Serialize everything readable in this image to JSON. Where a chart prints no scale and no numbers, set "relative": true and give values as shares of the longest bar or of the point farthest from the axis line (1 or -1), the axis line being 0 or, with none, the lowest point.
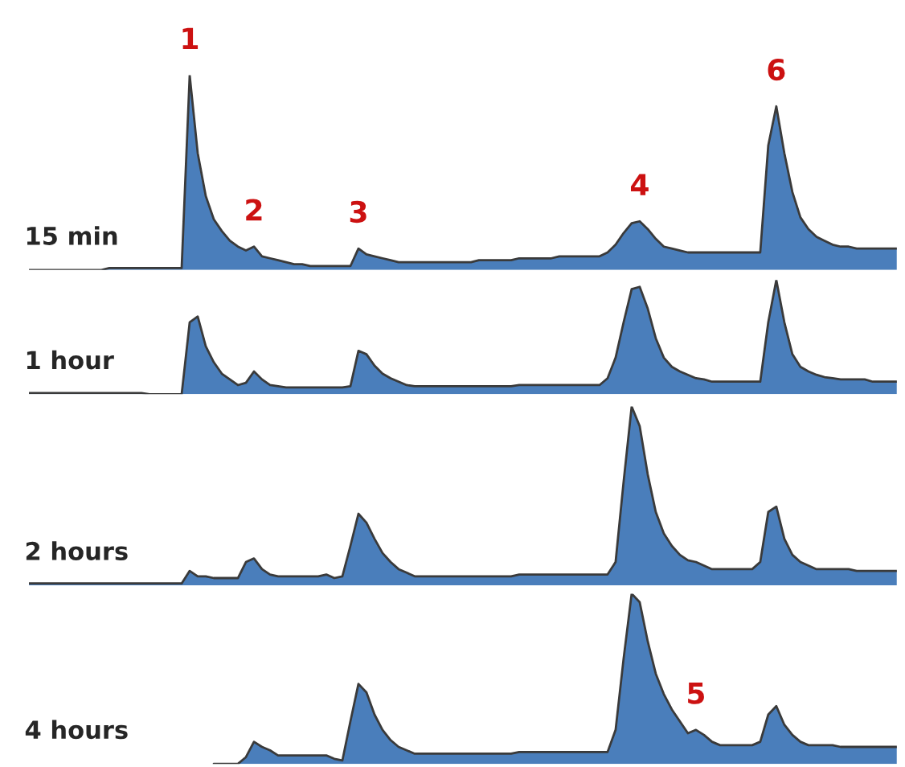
{
  "chart_data": [
    {
      "type": "area",
      "relative": true,
      "categories": [
        null,
        null,
        null,
        null,
        null,
        null,
        null,
        null,
        null,
        null,
        null,
        null,
        null,
        null,
        null,
        null,
        null,
        null,
        null,
        null,
        null,
        null,
        null,
        null,
        null,
        null,
        null,
        null,
        null,
        null,
        null,
        null,
        null,
        null,
        null,
        null,
        null,
        null,
        null,
        null,
        null,
        null,
        null,
        null,
        null,
        null,
        null,
        null,
        null,
        null,
        null,
        null,
        null,
        null,
        null,
        null,
        null,
        null,
        null,
        null,
        null,
        null,
        null,
        null,
        null,
        null,
        null,
        null,
        null,
        null,
        null,
        null,
        null,
        null,
        null,
        null,
        null,
        null,
        null,
        null,
        null,
        null,
        null,
        null,
        null,
        null,
        null,
        null,
        null,
        null,
        null,
        null,
        null,
        null,
        null,
        null,
        null,
        null,
        null,
        null,
        null,
        null,
        null,
        null,
        null,
        null,
        null,
        null,
        null
      ],
      "series": [
        {
          "name": "15 min",
          "color": "#4a7ebb",
          "values": [
            0.0,
            0.0,
            0.0,
            0.0,
            0.0,
            0.0,
            0.0,
            0.0,
            0.0,
            0.0,
            0.01,
            0.01,
            0.01,
            0.01,
            0.01,
            0.01,
            0.01,
            0.01,
            0.01,
            0.01,
            1.0,
            0.6,
            0.38,
            0.26,
            0.2,
            0.15,
            0.12,
            0.1,
            0.12,
            0.07,
            0.06,
            0.05,
            0.04,
            0.03,
            0.03,
            0.02,
            0.02,
            0.02,
            0.02,
            0.02,
            0.02,
            0.11,
            0.08,
            0.07,
            0.06,
            0.05,
            0.04,
            0.04,
            0.04,
            0.04,
            0.04,
            0.04,
            0.04,
            0.04,
            0.04,
            0.04,
            0.05,
            0.05,
            0.05,
            0.05,
            0.05,
            0.06,
            0.06,
            0.06,
            0.06,
            0.06,
            0.07,
            0.07,
            0.07,
            0.07,
            0.07,
            0.07,
            0.09,
            0.13,
            0.19,
            0.24,
            0.25,
            0.21,
            0.16,
            0.12,
            0.11,
            0.1,
            0.09,
            0.09,
            0.09,
            0.09,
            0.09,
            0.09,
            0.09,
            0.09,
            0.09,
            0.09,
            0.64,
            0.84,
            0.6,
            0.4,
            0.27,
            0.21,
            0.17,
            0.15,
            0.13,
            0.12,
            0.12,
            0.11,
            0.11,
            0.11,
            0.11,
            0.11,
            0.11
          ]
        }
      ],
      "annotations": [
        {
          "text": "1",
          "y": 1.0
        },
        {
          "text": "2",
          "y": 0.12
        },
        {
          "text": "3",
          "y": 0.11
        },
        {
          "text": "4",
          "y": 0.25
        },
        {
          "text": "6",
          "y": 0.84
        }
      ]
    },
    {
      "type": "area",
      "relative": true,
      "categories": [
        null,
        null,
        null,
        null,
        null,
        null,
        null,
        null,
        null,
        null,
        null,
        null,
        null,
        null,
        null,
        null,
        null,
        null,
        null,
        null,
        null,
        null,
        null,
        null,
        null,
        null,
        null,
        null,
        null,
        null,
        null,
        null,
        null,
        null,
        null,
        null,
        null,
        null,
        null,
        null,
        null,
        null,
        null,
        null,
        null,
        null,
        null,
        null,
        null,
        null,
        null,
        null,
        null,
        null,
        null,
        null,
        null,
        null,
        null,
        null,
        null,
        null,
        null,
        null,
        null,
        null,
        null,
        null,
        null,
        null,
        null,
        null,
        null,
        null,
        null,
        null,
        null,
        null,
        null,
        null,
        null,
        null,
        null,
        null,
        null,
        null,
        null,
        null,
        null,
        null,
        null,
        null,
        null,
        null,
        null,
        null,
        null,
        null,
        null,
        null,
        null,
        null,
        null,
        null,
        null,
        null,
        null,
        null,
        null
      ],
      "series": [
        {
          "name": "1 hour",
          "color": "#4a7ebb",
          "values": [
            0.01,
            0.01,
            0.01,
            0.01,
            0.01,
            0.01,
            0.01,
            0.01,
            0.01,
            0.01,
            0.01,
            0.01,
            0.01,
            0.01,
            0.01,
            0.0,
            0.0,
            0.0,
            0.0,
            0.0,
            0.63,
            0.68,
            0.42,
            0.28,
            0.18,
            0.13,
            0.08,
            0.1,
            0.2,
            0.13,
            0.08,
            0.07,
            0.06,
            0.06,
            0.06,
            0.06,
            0.06,
            0.06,
            0.06,
            0.06,
            0.07,
            0.38,
            0.35,
            0.25,
            0.18,
            0.14,
            0.11,
            0.08,
            0.07,
            0.07,
            0.07,
            0.07,
            0.07,
            0.07,
            0.07,
            0.07,
            0.07,
            0.07,
            0.07,
            0.07,
            0.07,
            0.08,
            0.08,
            0.08,
            0.08,
            0.08,
            0.08,
            0.08,
            0.08,
            0.08,
            0.08,
            0.08,
            0.14,
            0.32,
            0.63,
            0.92,
            0.94,
            0.75,
            0.49,
            0.32,
            0.24,
            0.2,
            0.17,
            0.14,
            0.13,
            0.11,
            0.11,
            0.11,
            0.11,
            0.11,
            0.11,
            0.11,
            0.63,
            1.0,
            0.63,
            0.35,
            0.24,
            0.2,
            0.17,
            0.15,
            0.14,
            0.13,
            0.13,
            0.13,
            0.13,
            0.11,
            0.11,
            0.11,
            0.11
          ]
        }
      ]
    },
    {
      "type": "area",
      "relative": true,
      "categories": [
        null,
        null,
        null,
        null,
        null,
        null,
        null,
        null,
        null,
        null,
        null,
        null,
        null,
        null,
        null,
        null,
        null,
        null,
        null,
        null,
        null,
        null,
        null,
        null,
        null,
        null,
        null,
        null,
        null,
        null,
        null,
        null,
        null,
        null,
        null,
        null,
        null,
        null,
        null,
        null,
        null,
        null,
        null,
        null,
        null,
        null,
        null,
        null,
        null,
        null,
        null,
        null,
        null,
        null,
        null,
        null,
        null,
        null,
        null,
        null,
        null,
        null,
        null,
        null,
        null,
        null,
        null,
        null,
        null,
        null,
        null,
        null,
        null,
        null,
        null,
        null,
        null,
        null,
        null,
        null,
        null,
        null,
        null,
        null,
        null,
        null,
        null,
        null,
        null,
        null,
        null,
        null,
        null,
        null,
        null,
        null,
        null,
        null,
        null,
        null,
        null,
        null,
        null,
        null,
        null,
        null,
        null,
        null,
        null
      ],
      "series": [
        {
          "name": "2 hours",
          "color": "#4a7ebb",
          "values": [
            0.01,
            0.01,
            0.01,
            0.01,
            0.01,
            0.01,
            0.01,
            0.01,
            0.01,
            0.01,
            0.01,
            0.01,
            0.01,
            0.01,
            0.01,
            0.01,
            0.01,
            0.01,
            0.01,
            0.01,
            0.08,
            0.05,
            0.05,
            0.04,
            0.04,
            0.04,
            0.04,
            0.13,
            0.15,
            0.09,
            0.06,
            0.05,
            0.05,
            0.05,
            0.05,
            0.05,
            0.05,
            0.06,
            0.04,
            0.05,
            0.22,
            0.4,
            0.35,
            0.26,
            0.18,
            0.13,
            0.09,
            0.07,
            0.05,
            0.05,
            0.05,
            0.05,
            0.05,
            0.05,
            0.05,
            0.05,
            0.05,
            0.05,
            0.05,
            0.05,
            0.05,
            0.06,
            0.06,
            0.06,
            0.06,
            0.06,
            0.06,
            0.06,
            0.06,
            0.06,
            0.06,
            0.06,
            0.06,
            0.13,
            0.58,
            1.0,
            0.89,
            0.62,
            0.41,
            0.29,
            0.22,
            0.17,
            0.14,
            0.13,
            0.11,
            0.09,
            0.09,
            0.09,
            0.09,
            0.09,
            0.09,
            0.13,
            0.41,
            0.44,
            0.26,
            0.17,
            0.13,
            0.11,
            0.09,
            0.09,
            0.09,
            0.09,
            0.09,
            0.08,
            0.08,
            0.08,
            0.08,
            0.08,
            0.08
          ]
        }
      ]
    },
    {
      "type": "area",
      "relative": true,
      "categories": [
        null,
        null,
        null,
        null,
        null,
        null,
        null,
        null,
        null,
        null,
        null,
        null,
        null,
        null,
        null,
        null,
        null,
        null,
        null,
        null,
        null,
        null,
        null,
        null,
        null,
        null,
        null,
        null,
        null,
        null,
        null,
        null,
        null,
        null,
        null,
        null,
        null,
        null,
        null,
        null,
        null,
        null,
        null,
        null,
        null,
        null,
        null,
        null,
        null,
        null,
        null,
        null,
        null,
        null,
        null,
        null,
        null,
        null,
        null,
        null,
        null,
        null,
        null,
        null,
        null,
        null,
        null,
        null,
        null,
        null,
        null,
        null,
        null,
        null,
        null,
        null,
        null,
        null,
        null,
        null,
        null,
        null,
        null,
        null,
        null,
        null,
        null,
        null,
        null,
        null,
        null,
        null,
        null,
        null,
        null,
        null,
        null,
        null,
        null,
        null,
        null,
        null,
        null,
        null,
        null,
        null,
        null,
        null,
        null
      ],
      "series": [
        {
          "name": "4 hours",
          "color": "#4a7ebb",
          "values": [
            null,
            null,
            null,
            null,
            null,
            null,
            null,
            null,
            null,
            null,
            null,
            null,
            null,
            null,
            null,
            null,
            null,
            null,
            null,
            null,
            null,
            null,
            null,
            0.0,
            0.0,
            0.0,
            0.0,
            0.04,
            0.13,
            0.1,
            0.08,
            0.05,
            0.05,
            0.05,
            0.05,
            0.05,
            0.05,
            0.05,
            0.03,
            0.02,
            0.25,
            0.47,
            0.42,
            0.29,
            0.2,
            0.14,
            0.1,
            0.08,
            0.06,
            0.06,
            0.06,
            0.06,
            0.06,
            0.06,
            0.06,
            0.06,
            0.06,
            0.06,
            0.06,
            0.06,
            0.06,
            0.07,
            0.07,
            0.07,
            0.07,
            0.07,
            0.07,
            0.07,
            0.07,
            0.07,
            0.07,
            0.07,
            0.07,
            0.2,
            0.62,
            1.0,
            0.95,
            0.72,
            0.53,
            0.41,
            0.32,
            0.25,
            0.18,
            0.2,
            0.17,
            0.13,
            0.11,
            0.11,
            0.11,
            0.11,
            0.11,
            0.13,
            0.29,
            0.34,
            0.23,
            0.17,
            0.13,
            0.11,
            0.11,
            0.11,
            0.11,
            0.1,
            0.1,
            0.1,
            0.1,
            0.1,
            0.1,
            0.1,
            0.1
          ]
        }
      ],
      "annotations": [
        {
          "text": "5",
          "y": 0.2
        }
      ]
    }
  ]
}
